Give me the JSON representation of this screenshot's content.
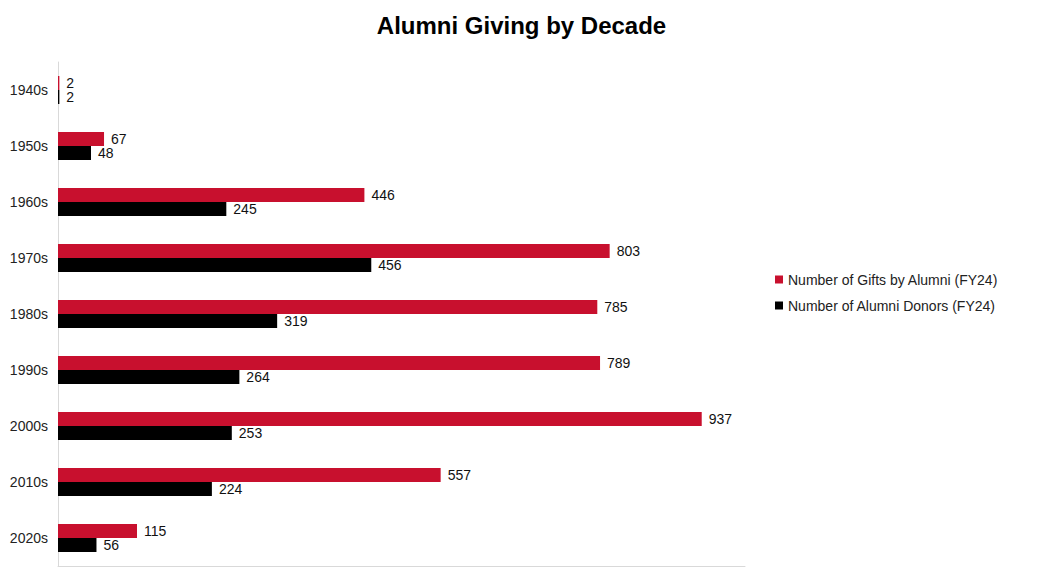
{
  "chart_data": {
    "type": "bar",
    "title": "Alumni Giving by Decade",
    "orientation": "horizontal",
    "categories": [
      "1940s",
      "1950s",
      "1960s",
      "1970s",
      "1980s",
      "1990s",
      "2000s",
      "2010s",
      "2020s"
    ],
    "series": [
      {
        "name": "Number of Gifts by Alumni (FY24)",
        "color": "#c8102e",
        "values": [
          2,
          67,
          446,
          803,
          785,
          789,
          937,
          557,
          115
        ]
      },
      {
        "name": "Number of Alumni Donors (FY24)",
        "color": "#000000",
        "values": [
          2,
          48,
          245,
          456,
          319,
          264,
          253,
          224,
          56
        ]
      }
    ],
    "xlim": [
      0,
      1000
    ],
    "grid": false,
    "legend": "right",
    "data_labels": true,
    "tick_labels": "y"
  }
}
